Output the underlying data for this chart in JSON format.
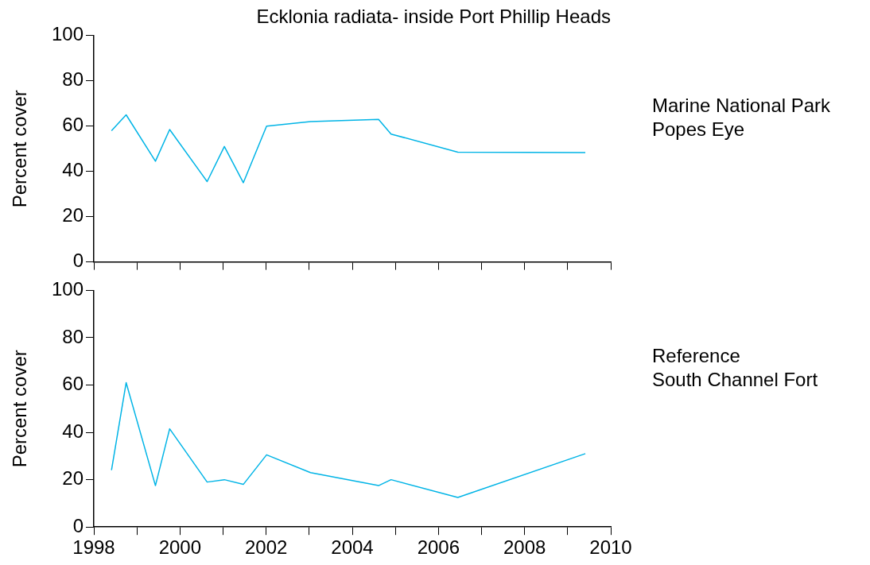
{
  "chart_data": [
    {
      "type": "line",
      "title": "Ecklonia radiata- inside Port Phillip Heads",
      "ylabel": "Percent cover",
      "annotations": [
        "Marine National Park",
        "Popes Eye"
      ],
      "x": [
        1998.41,
        1998.75,
        1999.43,
        1999.76,
        2000.63,
        2001.03,
        2001.47,
        2002.01,
        2003.03,
        2004.61,
        2004.9,
        2006.45,
        2009.41
      ],
      "series": [
        {
          "color": "#00b4e6",
          "values": [
            58,
            65,
            44.5,
            58.5,
            35.5,
            51,
            35,
            60,
            62,
            63,
            56.5,
            48.5,
            48.3
          ]
        }
      ],
      "xlim": [
        1998,
        2010
      ],
      "xticks": [
        1998,
        {
          "value": 1999,
          "label": null
        },
        2000,
        {
          "value": 2001,
          "label": null
        },
        2002,
        {
          "value": 2003,
          "label": null
        },
        2004,
        {
          "value": 2005,
          "label": null
        },
        2006,
        {
          "value": 2007,
          "label": null
        },
        2008,
        {
          "value": 2009,
          "label": null
        },
        2010
      ],
      "ylim": [
        0,
        100
      ],
      "yticks": [
        0,
        20,
        40,
        60,
        80,
        100
      ],
      "tick_labels": "y",
      "grid": false,
      "legend": false,
      "marker": "none",
      "line_style": "solid"
    },
    {
      "type": "line",
      "ylabel": "Percent cover",
      "annotations": [
        "Reference",
        "South Channel Fort"
      ],
      "x": [
        1998.41,
        1998.75,
        1999.43,
        1999.76,
        2000.63,
        2001.03,
        2001.47,
        2002.01,
        2003.03,
        2004.61,
        2004.9,
        2006.45,
        2009.41
      ],
      "series": [
        {
          "color": "#00b4e6",
          "values": [
            24,
            61,
            17.5,
            41.5,
            19,
            20,
            18,
            30.5,
            23,
            17.5,
            20,
            12.5,
            31
          ]
        }
      ],
      "xlim": [
        1998,
        2010
      ],
      "xticks": [
        1998,
        {
          "value": 1999,
          "label": null
        },
        2000,
        {
          "value": 2001,
          "label": null
        },
        2002,
        {
          "value": 2003,
          "label": null
        },
        2004,
        {
          "value": 2005,
          "label": null
        },
        2006,
        {
          "value": 2007,
          "label": null
        },
        2008,
        {
          "value": 2009,
          "label": null
        },
        2010
      ],
      "ylim": [
        0,
        100
      ],
      "yticks": [
        0,
        20,
        40,
        60,
        80,
        100
      ],
      "grid": false,
      "legend": false,
      "marker": "none",
      "line_style": "solid"
    }
  ]
}
